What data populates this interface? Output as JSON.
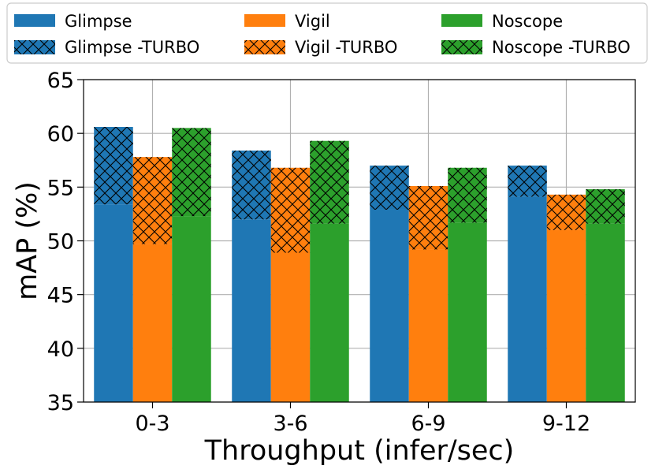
{
  "chart_data": {
    "type": "bar",
    "title": "",
    "xlabel": "Throughput (infer/sec)",
    "ylabel": "mAP (%)",
    "categories": [
      "0-3",
      "3-6",
      "6-9",
      "9-12"
    ],
    "ylim": [
      35,
      65
    ],
    "yticks": [
      35,
      40,
      45,
      50,
      55,
      60,
      65
    ],
    "grid": true,
    "legend_position": "top",
    "series": [
      {
        "name": "Glimpse",
        "turbo_name": "Glimpse -TURBO",
        "color": "#1f77b4",
        "base": [
          53.4,
          52.0,
          52.9,
          54.1
        ],
        "turbo": [
          60.6,
          58.4,
          57.0,
          57.0
        ]
      },
      {
        "name": "Vigil",
        "turbo_name": "Vigil -TURBO",
        "color": "#ff7f0e",
        "base": [
          49.7,
          48.9,
          49.2,
          51.0
        ],
        "turbo": [
          57.8,
          56.8,
          55.1,
          54.3
        ]
      },
      {
        "name": "Noscope",
        "turbo_name": "Noscope -TURBO",
        "color": "#2ca02c",
        "base": [
          52.3,
          51.6,
          51.7,
          51.6
        ],
        "turbo": [
          60.5,
          59.3,
          56.8,
          54.8
        ]
      }
    ]
  }
}
